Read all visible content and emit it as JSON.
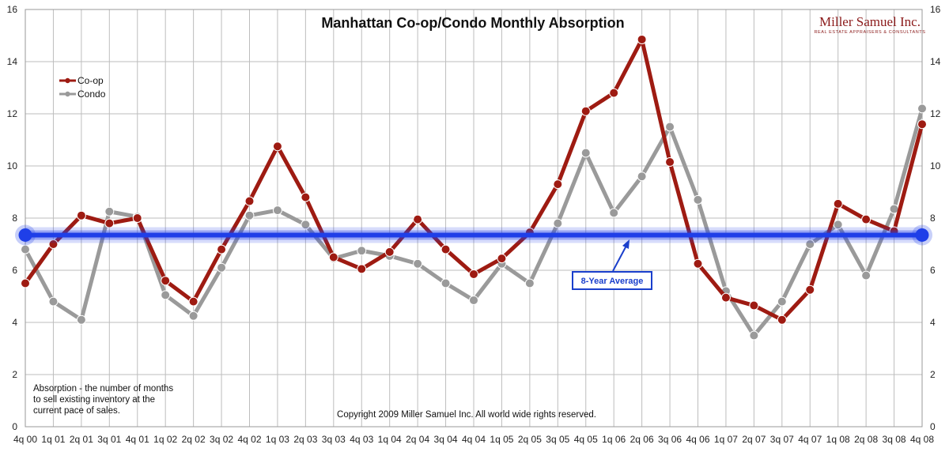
{
  "chart_data": {
    "type": "line",
    "title": "Manhattan Co-op/Condo Monthly Absorption",
    "categories": [
      "4q 00",
      "1q 01",
      "2q 01",
      "3q 01",
      "4q 01",
      "1q 02",
      "2q 02",
      "3q 02",
      "4q 02",
      "1q 03",
      "2q 03",
      "3q 03",
      "4q 03",
      "1q 04",
      "2q 04",
      "3q 04",
      "4q 04",
      "1q 05",
      "2q 05",
      "3q 05",
      "4q 05",
      "1q 06",
      "2q 06",
      "3q 06",
      "4q 06",
      "1q 07",
      "2q 07",
      "3q 07",
      "4q 07",
      "1q 08",
      "2q 08",
      "3q 08",
      "4q 08"
    ],
    "ylim": [
      0,
      16
    ],
    "yticks": [
      0,
      2,
      4,
      6,
      8,
      10,
      12,
      14,
      16
    ],
    "grid": true,
    "legend_position": "top-left",
    "series": [
      {
        "name": "Co-op",
        "color": "#9e1b12",
        "values": [
          5.5,
          7.0,
          8.1,
          7.8,
          8.0,
          5.6,
          4.8,
          6.8,
          8.65,
          10.75,
          8.8,
          6.5,
          6.05,
          6.7,
          7.95,
          6.8,
          5.85,
          6.45,
          7.45,
          9.3,
          12.1,
          12.8,
          14.85,
          10.15,
          6.25,
          4.95,
          4.65,
          4.1,
          5.25,
          8.55,
          7.95,
          7.5,
          11.6
        ]
      },
      {
        "name": "Condo",
        "color": "#9a9a9a",
        "values": [
          6.8,
          4.8,
          4.1,
          8.25,
          8.05,
          5.05,
          4.25,
          6.1,
          8.1,
          8.3,
          7.75,
          6.45,
          6.75,
          6.55,
          6.25,
          5.5,
          4.85,
          6.25,
          5.5,
          7.8,
          10.5,
          8.2,
          9.6,
          11.5,
          8.7,
          5.2,
          3.5,
          4.8,
          7.0,
          7.75,
          5.8,
          8.35,
          12.2
        ]
      }
    ],
    "reference_line": {
      "value": 7.35,
      "color": "#1f3fe8"
    },
    "annotation": "8-Year Average",
    "note": "Absorption - the number of months to sell existing inventory at the current pace of sales.",
    "note_lines": [
      "Absorption - the number of months",
      "to sell existing inventory at the",
      "current pace of sales."
    ],
    "copyright": "Copyright 2009 Miller Samuel Inc.  All world wide rights reserved."
  },
  "logo": {
    "name": "Miller Samuel Inc.",
    "tagline": "REAL ESTATE APPRAISERS & CONSULTANTS"
  }
}
